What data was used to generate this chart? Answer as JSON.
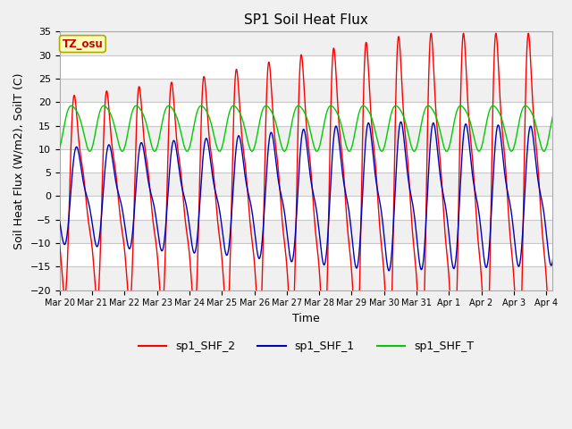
{
  "title": "SP1 Soil Heat Flux",
  "xlabel": "Time",
  "ylabel": "Soil Heat Flux (W/m2), SoilT (C)",
  "ylim": [
    -20,
    35
  ],
  "xlim": [
    0,
    15.2
  ],
  "bg_color": "#f0f0f0",
  "grid_color": "#ffffff",
  "alt_band_color": "#dcdcdc",
  "tz_label": "TZ_osu",
  "line_colors": [
    "#ff0000",
    "#0000bb",
    "#00cc00"
  ],
  "legend_labels": [
    "sp1_SHF_2",
    "sp1_SHF_1",
    "sp1_SHF_T"
  ],
  "x_tick_labels": [
    "Mar 20",
    "Mar 21",
    "Mar 22",
    "Mar 23",
    "Mar 24",
    "Mar 25",
    "Mar 26",
    "Mar 27",
    "Mar 28",
    "Mar 29",
    "Mar 30",
    "Mar 31",
    "Apr 1",
    "Apr 2",
    "Apr 3",
    "Apr 4"
  ],
  "yticks": [
    -20,
    -15,
    -10,
    -5,
    0,
    5,
    10,
    15,
    20,
    25,
    30,
    35
  ]
}
